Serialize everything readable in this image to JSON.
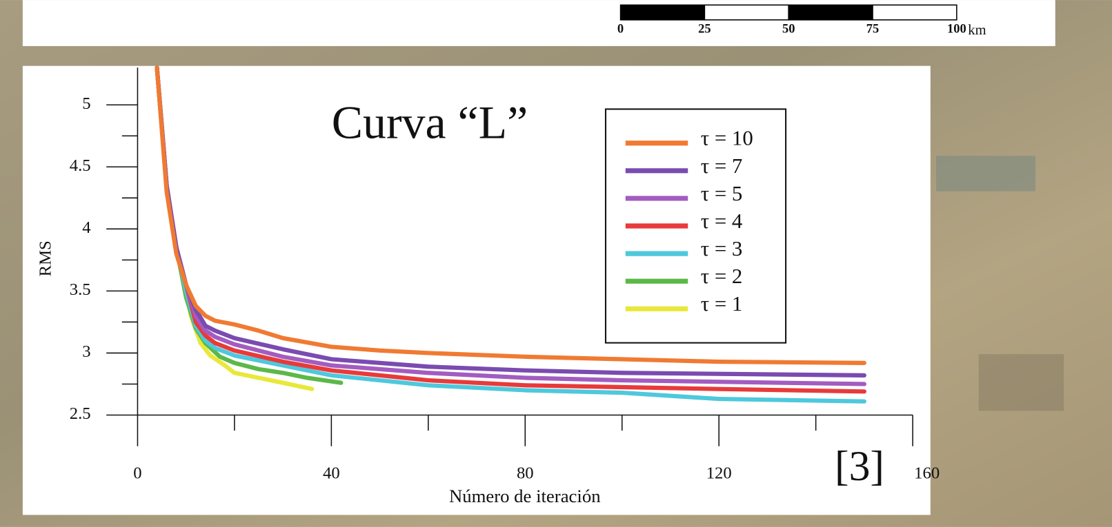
{
  "chart_data": {
    "type": "line",
    "title": "Curva “L”",
    "x_label": "Número de iteración",
    "y_label": "RMS",
    "annotation": "[3]",
    "xlim": [
      0,
      160
    ],
    "xticks": [
      0,
      40,
      80,
      120,
      160
    ],
    "x_minor_ticks": [
      20,
      60,
      100,
      140
    ],
    "ylim": [
      2.5,
      5.3
    ],
    "yticks": [
      2.5,
      3,
      3.5,
      4,
      4.5,
      5
    ],
    "y_minor_ticks": [
      2.75,
      3.25,
      3.75,
      4.25,
      4.75
    ],
    "series": [
      {
        "name": "τ = 10",
        "color": "#f07a32",
        "x": [
          4,
          6,
          8,
          10,
          12,
          14,
          16,
          20,
          25,
          30,
          40,
          50,
          60,
          80,
          100,
          120,
          150
        ],
        "values": [
          5.3,
          4.3,
          3.8,
          3.55,
          3.38,
          3.3,
          3.26,
          3.23,
          3.18,
          3.12,
          3.05,
          3.02,
          3.0,
          2.97,
          2.95,
          2.93,
          2.92
        ]
      },
      {
        "name": "τ = 7",
        "color": "#7a4bb0",
        "x": [
          4,
          6,
          8,
          10,
          12,
          14,
          16,
          20,
          30,
          40,
          60,
          80,
          100,
          150
        ],
        "values": [
          5.3,
          4.35,
          3.85,
          3.55,
          3.35,
          3.22,
          3.18,
          3.12,
          3.03,
          2.95,
          2.89,
          2.86,
          2.84,
          2.82
        ]
      },
      {
        "name": "τ = 5",
        "color": "#a35cc0",
        "x": [
          4,
          6,
          8,
          10,
          12,
          14,
          16,
          20,
          30,
          40,
          60,
          80,
          100,
          150
        ],
        "values": [
          5.3,
          4.35,
          3.85,
          3.55,
          3.3,
          3.18,
          3.13,
          3.07,
          2.97,
          2.9,
          2.84,
          2.8,
          2.78,
          2.75
        ]
      },
      {
        "name": "τ = 4",
        "color": "#e83a3a",
        "x": [
          4,
          6,
          8,
          10,
          12,
          14,
          16,
          20,
          30,
          40,
          60,
          80,
          120,
          150
        ],
        "values": [
          5.3,
          4.35,
          3.85,
          3.55,
          3.25,
          3.14,
          3.08,
          3.02,
          2.93,
          2.86,
          2.78,
          2.74,
          2.71,
          2.69
        ]
      },
      {
        "name": "τ = 3",
        "color": "#4ec8dc",
        "x": [
          4,
          6,
          8,
          10,
          12,
          14,
          16,
          20,
          30,
          40,
          60,
          80,
          100,
          120,
          150
        ],
        "values": [
          5.3,
          4.35,
          3.85,
          3.5,
          3.22,
          3.1,
          3.04,
          2.98,
          2.9,
          2.82,
          2.74,
          2.7,
          2.68,
          2.63,
          2.61
        ]
      },
      {
        "name": "τ = 2",
        "color": "#5cb848",
        "x": [
          4,
          6,
          8,
          10,
          12,
          14,
          17,
          20,
          25,
          30,
          35,
          42
        ],
        "values": [
          5.3,
          4.35,
          3.85,
          3.45,
          3.2,
          3.08,
          2.97,
          2.92,
          2.87,
          2.84,
          2.8,
          2.76
        ]
      },
      {
        "name": "τ = 1",
        "color": "#e8e83a",
        "x": [
          4,
          6,
          8,
          10,
          11,
          13,
          15,
          18,
          20,
          25,
          30,
          36
        ],
        "values": [
          5.3,
          4.35,
          3.85,
          3.5,
          3.3,
          3.08,
          2.98,
          2.9,
          2.84,
          2.8,
          2.76,
          2.71
        ]
      }
    ]
  },
  "scale_bar": {
    "ticks": [
      0,
      25,
      50,
      75,
      100
    ],
    "unit": "km"
  }
}
